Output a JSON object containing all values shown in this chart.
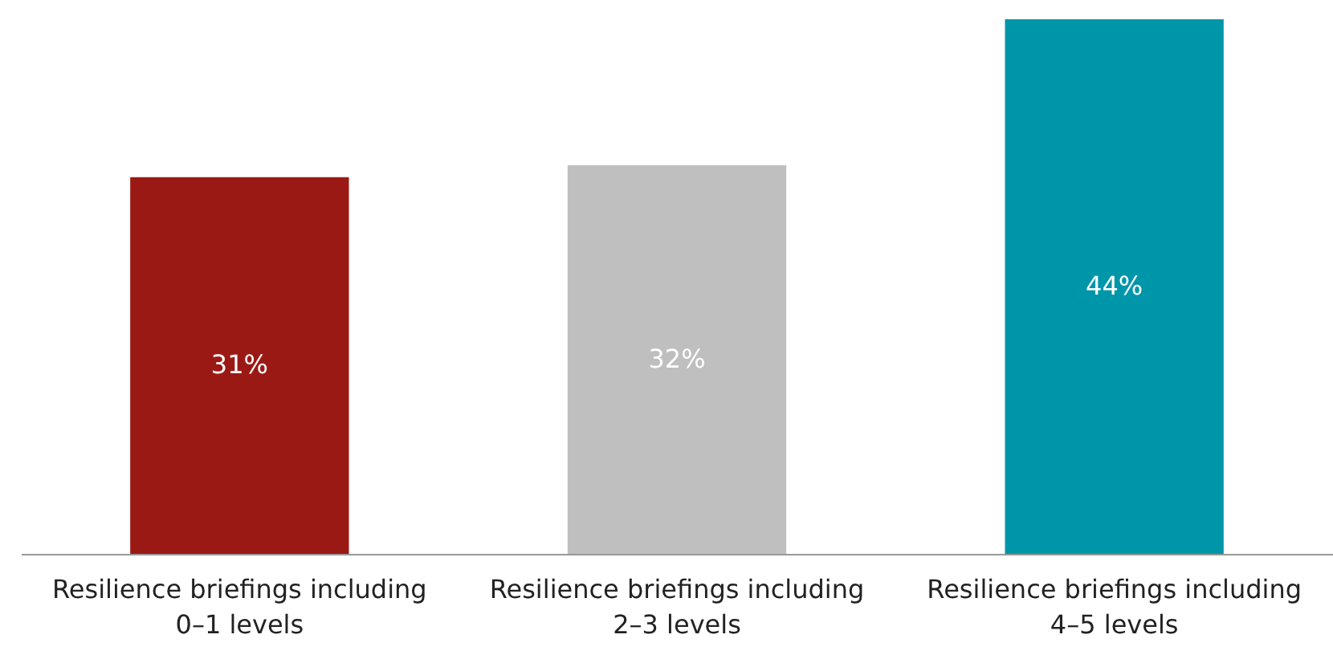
{
  "chart_data": {
    "type": "bar",
    "categories": [
      "Resilience briefings including 0–1 levels",
      "Resilience briefings including 2–3 levels",
      "Resilience briefings including 4–5 levels"
    ],
    "values": [
      31,
      32,
      44
    ],
    "colors": [
      "#9b1915",
      "#bfbfbf",
      "#0096aa"
    ],
    "value_labels": [
      "31%",
      "32%",
      "44%"
    ],
    "ylim": [
      0,
      44
    ],
    "tick_labels": "x"
  }
}
